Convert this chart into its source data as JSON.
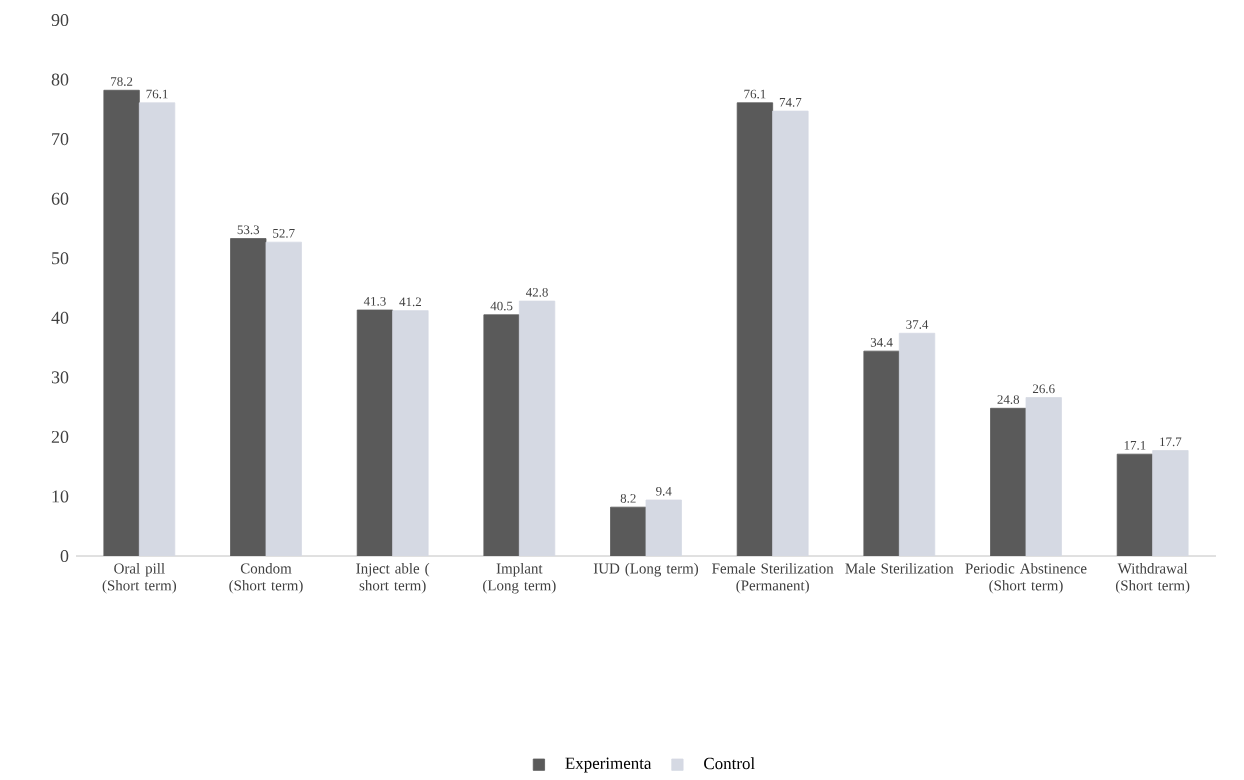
{
  "chart_data": {
    "type": "bar",
    "categories": [
      "Oral pill (Short term)",
      "Condom (Short term)",
      "Inject able ( short term)",
      "Implant (Long term)",
      "IUD (Long term)",
      "Female Sterilization (Permanent)",
      "Male Sterilization",
      "Periodic Abstinence (Short term)",
      "Withdrawal (Short term)"
    ],
    "series": [
      {
        "name": "Experimenta",
        "color": "#5a5a5a",
        "values": [
          78.2,
          53.3,
          41.3,
          40.5,
          8.2,
          76.1,
          34.4,
          24.8,
          17.1
        ]
      },
      {
        "name": "Control",
        "color": "#d5d9e3",
        "values": [
          76.1,
          52.7,
          41.2,
          42.8,
          9.4,
          74.7,
          37.4,
          26.6,
          17.7
        ]
      }
    ],
    "ylim": [
      0,
      90
    ],
    "yticks": [
      0,
      10,
      20,
      30,
      40,
      50,
      60,
      70,
      80,
      90
    ],
    "data_labels": true,
    "legend": "bottom",
    "grid": false
  }
}
